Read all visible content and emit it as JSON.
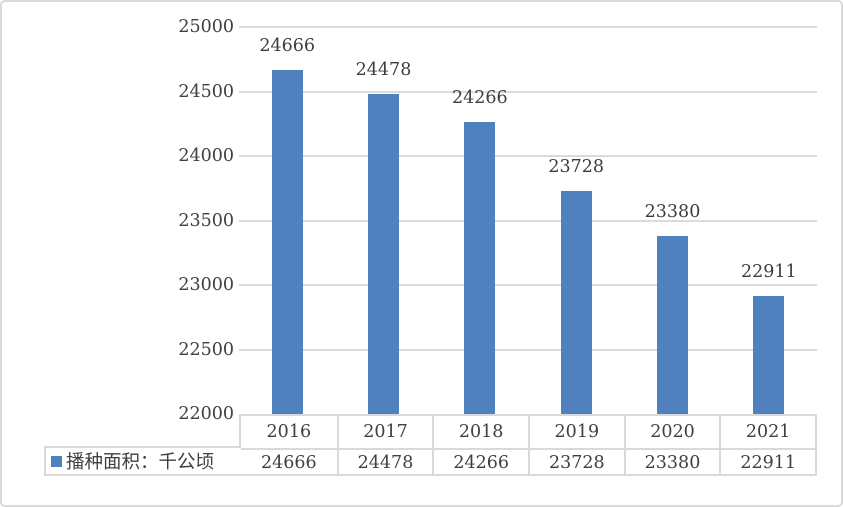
{
  "chart_data": {
    "type": "bar",
    "categories": [
      "2016",
      "2017",
      "2018",
      "2019",
      "2020",
      "2021"
    ],
    "values": [
      24666,
      24478,
      24266,
      23728,
      23380,
      22911
    ],
    "series_name": "播种面积：千公顷",
    "title": "",
    "xlabel": "",
    "ylabel": "",
    "ylim": [
      22000,
      25000
    ],
    "yticks": [
      22000,
      22500,
      23000,
      23500,
      24000,
      24500,
      25000
    ],
    "grid": true,
    "data_labels": true,
    "legend_position": "bottom-left",
    "data_table_shown": true
  },
  "legend": {
    "label": "播种面积：千公顷"
  },
  "colors": {
    "bar": "#4E81BD",
    "gridline": "#DBDBDB",
    "table_border": "#D9D9D9",
    "text": "#404040",
    "frame_border": "#D9D9D9",
    "background": "#FFFFFF"
  }
}
